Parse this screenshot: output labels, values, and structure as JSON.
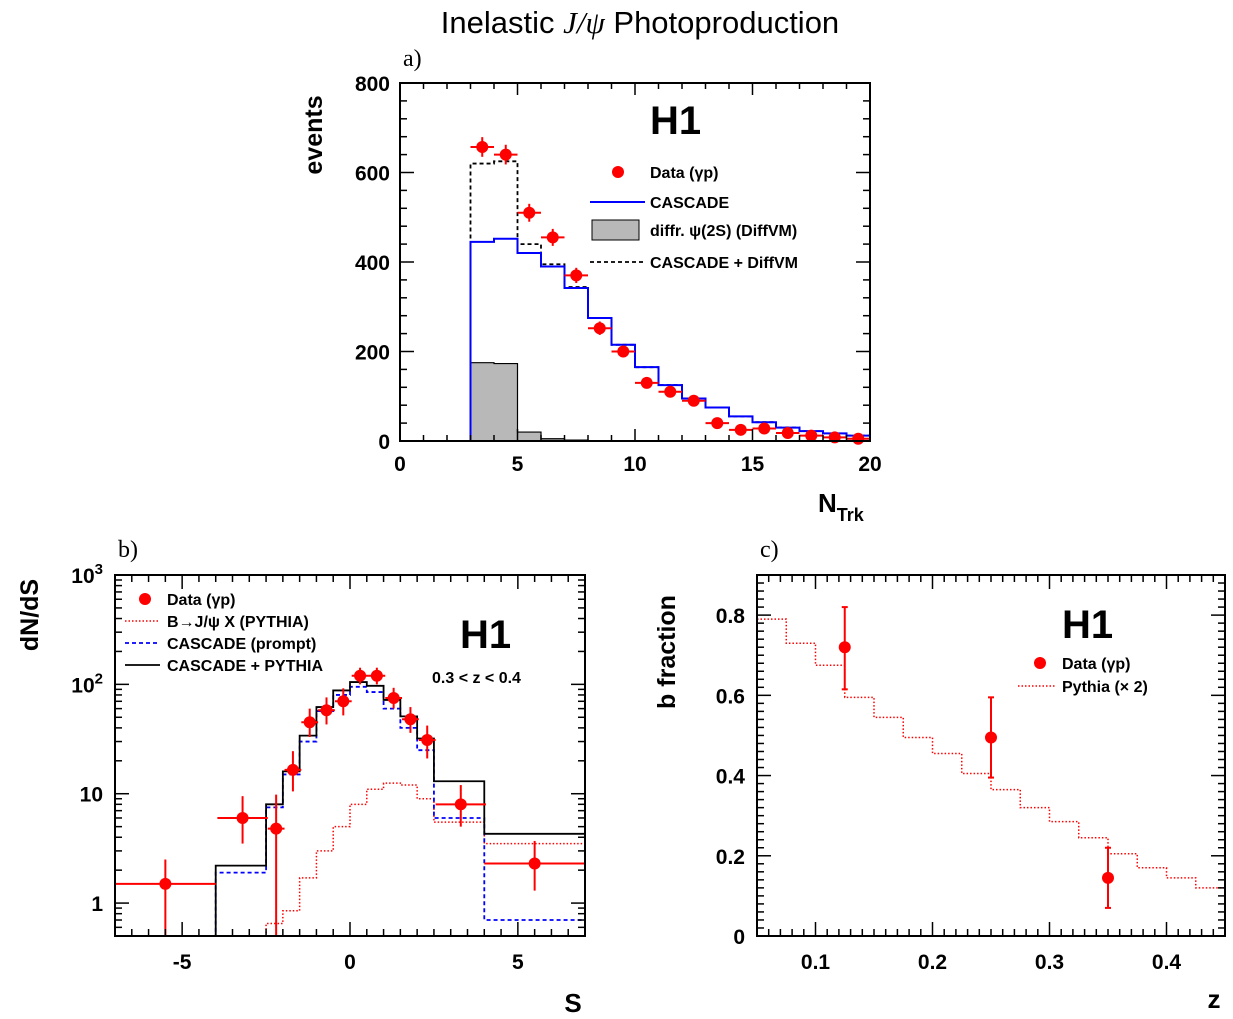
{
  "figure_title": {
    "prefix": "Inelastic ",
    "math": "J/ψ",
    "suffix": " Photoproduction"
  },
  "colors": {
    "data": "#ff0000",
    "cascade": "#0000ff",
    "diffvm_fill": "#b8b8b8",
    "pythia": "#ff0000",
    "black": "#000000"
  },
  "chart_data": [
    {
      "panel": "a)",
      "type": "line",
      "experiment": "H1",
      "xlabel": "N",
      "xlabel_sub": "Trk",
      "ylabel": "events",
      "xlim": [
        0,
        20
      ],
      "ylim": [
        0,
        800
      ],
      "xticks": [
        "0",
        "5",
        "10",
        "15",
        "20"
      ],
      "yticks": [
        "0",
        "200",
        "400",
        "600",
        "800"
      ],
      "legend": {
        "data": "Data (γp)",
        "cascade": "CASCADE",
        "diffvm": "diffr. ψ(2S) (DiffVM)",
        "sum": "CASCADE + DiffVM"
      },
      "bin_edges": [
        0,
        1,
        2,
        3,
        4,
        5,
        6,
        7,
        8,
        9,
        10,
        11,
        12,
        13,
        14,
        15,
        16,
        17,
        18,
        19,
        20
      ],
      "series": [
        {
          "name": "CASCADE",
          "kind": "hist",
          "values": [
            0,
            0,
            0,
            445,
            452,
            420,
            390,
            342,
            275,
            215,
            165,
            125,
            95,
            75,
            55,
            42,
            30,
            22,
            17,
            12
          ]
        },
        {
          "name": "diffr. ψ(2S) (DiffVM)",
          "kind": "hist-filled",
          "values": [
            0,
            0,
            0,
            175,
            173,
            20,
            5,
            2,
            0,
            0,
            0,
            0,
            0,
            0,
            0,
            0,
            0,
            0,
            0,
            0
          ]
        },
        {
          "name": "CASCADE + DiffVM",
          "kind": "hist-dashed",
          "values": [
            0,
            0,
            0,
            620,
            625,
            440,
            395,
            344,
            275,
            215,
            165,
            125,
            95,
            75,
            55,
            42,
            30,
            22,
            17,
            12
          ]
        },
        {
          "name": "Data (γp)",
          "kind": "points",
          "x": [
            3.5,
            4.5,
            5.5,
            6.5,
            7.5,
            8.5,
            9.5,
            10.5,
            11.5,
            12.5,
            13.5,
            14.5,
            15.5,
            16.5,
            17.5,
            18.5,
            19.5
          ],
          "y": [
            657,
            640,
            510,
            455,
            370,
            252,
            200,
            130,
            110,
            90,
            40,
            25,
            28,
            18,
            12,
            8,
            5
          ],
          "yerr": [
            22,
            22,
            20,
            19,
            17,
            15,
            13,
            11,
            10,
            9,
            6,
            5,
            5,
            4,
            3,
            3,
            2
          ]
        }
      ]
    },
    {
      "panel": "b)",
      "type": "line",
      "experiment": "H1",
      "annotation": "0.3 < z < 0.4",
      "xlabel": "S",
      "ylabel": "dN/dS",
      "yscale": "log",
      "xlim": [
        -7,
        7
      ],
      "ylim": [
        0.5,
        1000
      ],
      "xticks": [
        "-5",
        "0",
        "5"
      ],
      "yticks": [
        "1",
        "10",
        "10",
        "10"
      ],
      "ytick_exponents": [
        "",
        "",
        "2",
        "3"
      ],
      "legend": {
        "data": "Data (γp)",
        "pythia": "B→J/ψ X (PYTHIA)",
        "cascade": "CASCADE (prompt)",
        "sum": "CASCADE + PYTHIA"
      },
      "bin_edges": [
        -7,
        -4,
        -2.5,
        -2,
        -1.5,
        -1,
        -0.5,
        0,
        0.5,
        1,
        1.5,
        2,
        2.5,
        4,
        7
      ],
      "series": [
        {
          "name": "B→J/ψ X (PYTHIA)",
          "kind": "hist-dotted",
          "values": [
            0.5,
            0.5,
            0.65,
            0.85,
            1.7,
            3,
            5,
            8,
            11,
            12.5,
            12,
            9,
            5.5,
            3.5
          ]
        },
        {
          "name": "CASCADE (prompt)",
          "kind": "hist-dashed",
          "values": [
            0.5,
            1.9,
            7.5,
            15,
            30,
            57,
            80,
            95,
            85,
            60,
            40,
            25,
            6,
            0.7
          ]
        },
        {
          "name": "CASCADE + PYTHIA",
          "kind": "hist",
          "values": [
            0.5,
            2.2,
            8,
            16,
            34,
            62,
            88,
            105,
            97,
            72,
            51,
            32,
            13,
            4.3
          ]
        },
        {
          "name": "Data (γp)",
          "kind": "points",
          "x": [
            -5.5,
            -3.2,
            -2.2,
            -1.7,
            -1.2,
            -0.7,
            -0.2,
            0.3,
            0.8,
            1.3,
            1.8,
            2.3,
            3.3,
            5.5
          ],
          "y": [
            1.5,
            6,
            4.8,
            16.5,
            45,
            58,
            70,
            120,
            120,
            75,
            48,
            31,
            8,
            2.3
          ],
          "yerr_lo": [
            1.0,
            2.5,
            4.6,
            6,
            12,
            15,
            18,
            20,
            20,
            15,
            12,
            10,
            3,
            1.0
          ],
          "yerr_hi": [
            1.0,
            3.5,
            5.0,
            8,
            15,
            18,
            22,
            22,
            22,
            18,
            14,
            11,
            4,
            1.4
          ],
          "xerr": [
            1.5,
            0.75,
            0.25,
            0.25,
            0.25,
            0.25,
            0.25,
            0.25,
            0.25,
            0.25,
            0.25,
            0.25,
            0.75,
            1.5
          ]
        }
      ]
    },
    {
      "panel": "c)",
      "type": "line",
      "experiment": "H1",
      "xlabel": "z",
      "ylabel": "b fraction",
      "xlim": [
        0.05,
        0.45
      ],
      "ylim": [
        0,
        0.9
      ],
      "xticks": [
        "0.1",
        "0.2",
        "0.3",
        "0.4"
      ],
      "yticks": [
        "0",
        "0.2",
        "0.4",
        "0.6",
        "0.8"
      ],
      "legend": {
        "data": "Data (γp)",
        "pythia": "Pythia (× 2)"
      },
      "bin_edges": [
        0.05,
        0.075,
        0.1,
        0.125,
        0.15,
        0.175,
        0.2,
        0.225,
        0.25,
        0.275,
        0.3,
        0.325,
        0.35,
        0.375,
        0.4,
        0.425,
        0.45
      ],
      "series": [
        {
          "name": "Pythia (× 2)",
          "kind": "hist-dotted",
          "values": [
            0.79,
            0.73,
            0.675,
            0.595,
            0.545,
            0.495,
            0.455,
            0.405,
            0.365,
            0.32,
            0.285,
            0.245,
            0.205,
            0.17,
            0.145,
            0.12
          ]
        },
        {
          "name": "Data (γp)",
          "kind": "points",
          "x": [
            0.125,
            0.25,
            0.35
          ],
          "y": [
            0.72,
            0.495,
            0.145
          ],
          "yerr_lo": [
            0.105,
            0.1,
            0.075
          ],
          "yerr_hi": [
            0.1,
            0.1,
            0.075
          ]
        }
      ]
    }
  ]
}
